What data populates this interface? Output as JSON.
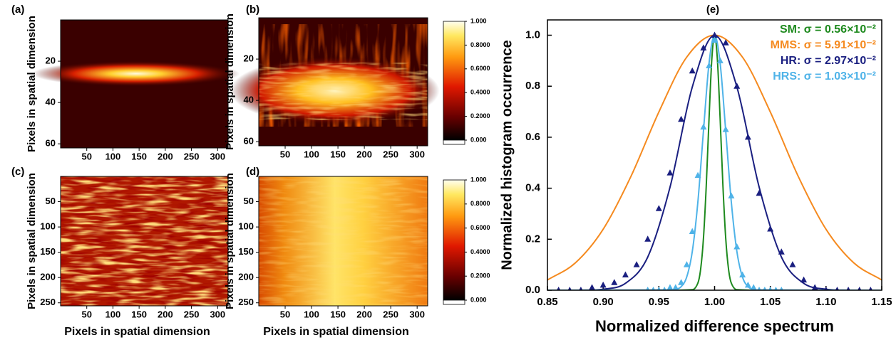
{
  "chart_data": [
    {
      "type": "heatmap",
      "label": "(a)",
      "ylabel": "Pixels in spatial dimension",
      "xlim": [
        0,
        320
      ],
      "xticks": [
        50,
        100,
        150,
        200,
        250,
        300
      ],
      "ylim": [
        0,
        62
      ],
      "yticks": [
        20,
        40,
        60
      ],
      "y_reversed": true
    },
    {
      "type": "heatmap",
      "label": "(b)",
      "ylabel": "Pixels in spatial dimension",
      "xlim": [
        0,
        320
      ],
      "xticks": [
        50,
        100,
        150,
        200,
        250,
        300
      ],
      "ylim": [
        0,
        62
      ],
      "yticks": [
        20,
        40,
        60
      ],
      "y_reversed": true,
      "colorbar": {
        "clim": [
          0,
          1
        ],
        "ticks": [
          {
            "value": 0,
            "label": "0.000"
          },
          {
            "value": 0.2,
            "label": "0.2000"
          },
          {
            "value": 0.4,
            "label": "0.4000"
          },
          {
            "value": 0.6,
            "label": "0.6000"
          },
          {
            "value": 0.8,
            "label": "0.8000"
          },
          {
            "value": 1,
            "label": "1.000"
          }
        ]
      }
    },
    {
      "type": "heatmap",
      "label": "(c)",
      "ylabel": "Pixels in spatial dimension",
      "xlabel": "Pixels in spatial dimension",
      "xlim": [
        0,
        320
      ],
      "xticks": [
        50,
        100,
        150,
        200,
        250,
        300
      ],
      "ylim": [
        0,
        256
      ],
      "yticks": [
        50,
        100,
        150,
        200,
        250
      ],
      "y_reversed": true
    },
    {
      "type": "heatmap",
      "label": "(d)",
      "ylabel": "Pixels in spatial dimension",
      "xlabel": "Pixels in spatial dimension",
      "xlim": [
        0,
        320
      ],
      "xticks": [
        50,
        100,
        150,
        200,
        250,
        300
      ],
      "ylim": [
        0,
        256
      ],
      "yticks": [
        50,
        100,
        150,
        200,
        250
      ],
      "y_reversed": true,
      "colorbar": {
        "clim": [
          0,
          1
        ],
        "ticks": [
          {
            "value": 0,
            "label": "0.000"
          },
          {
            "value": 0.2,
            "label": "0.2000"
          },
          {
            "value": 0.4,
            "label": "0.4000"
          },
          {
            "value": 0.6,
            "label": "0.6000"
          },
          {
            "value": 0.8,
            "label": "0.8000"
          },
          {
            "value": 1,
            "label": "1.000"
          }
        ]
      }
    },
    {
      "type": "line",
      "label": "(e)",
      "xlabel": "Normalized difference spectrum",
      "ylabel": "Normalized histogram occurrence",
      "xlim": [
        0.85,
        1.15
      ],
      "xticks": [
        0.85,
        {
          "value": 0.9,
          "label": "0.90"
        },
        0.95,
        {
          "value": 1,
          "label": "1.00"
        },
        1.05,
        {
          "value": 1.1,
          "label": "1.10"
        },
        1.15
      ],
      "ylim": [
        0,
        1.06
      ],
      "yticks": [
        {
          "value": 0,
          "label": "0.0"
        },
        0.2,
        0.4,
        0.6,
        0.8,
        {
          "value": 1,
          "label": "1.0"
        }
      ],
      "legend": "upper right",
      "series": [
        {
          "name": "SM: σ = 0.56×10⁻²",
          "color": "#1e8a1e",
          "x": [
            0.85,
            0.98,
            0.985,
            0.9875,
            0.99,
            0.9925,
            0.995,
            0.9975,
            1,
            1.0025,
            1.005,
            1.0075,
            1.01,
            1.0125,
            1.015,
            1.02,
            1.15
          ],
          "values": [
            0,
            0.002,
            0.028,
            0.083,
            0.203,
            0.408,
            0.671,
            0.905,
            1,
            0.905,
            0.671,
            0.408,
            0.203,
            0.083,
            0.028,
            0.002,
            0
          ]
        },
        {
          "name": "MMS: σ = 5.91×10⁻²",
          "color": "#f58a1f",
          "x": [
            0.85,
            0.875,
            0.9,
            0.925,
            0.95,
            0.975,
            1,
            1.025,
            1.05,
            1.075,
            1.1,
            1.125,
            1.15
          ],
          "values": [
            0.04,
            0.107,
            0.239,
            0.447,
            0.699,
            0.914,
            1,
            0.914,
            0.699,
            0.447,
            0.239,
            0.107,
            0.04
          ]
        },
        {
          "name": "HR: σ = 2.97×10⁻²",
          "color": "#1a1f80",
          "x": [
            0.85,
            0.88,
            0.9,
            0.92,
            0.94,
            0.96,
            0.98,
            1,
            1.02,
            1.04,
            1.06,
            1.08,
            1.1,
            1.12,
            1.15
          ],
          "values": [
            0,
            0,
            0.004,
            0.027,
            0.13,
            0.404,
            0.797,
            1,
            0.797,
            0.404,
            0.13,
            0.027,
            0.004,
            0,
            0
          ]
        },
        {
          "name": "HRS: σ = 1.03×10⁻²",
          "color": "#4fb3e8",
          "x": [
            0.85,
            0.96,
            0.965,
            0.97,
            0.975,
            0.98,
            0.985,
            0.99,
            0.995,
            1,
            1.005,
            1.01,
            1.015,
            1.02,
            1.025,
            1.03,
            1.035,
            1.04,
            1.15
          ],
          "values": [
            0,
            0.001,
            0.003,
            0.014,
            0.052,
            0.152,
            0.346,
            0.624,
            0.889,
            1,
            0.889,
            0.624,
            0.346,
            0.152,
            0.052,
            0.014,
            0.003,
            0.001,
            0
          ]
        },
        {
          "color": "#1a1f80",
          "marker": "triangle",
          "x": [
            0.86,
            0.87,
            0.88,
            0.89,
            0.9,
            0.91,
            0.92,
            0.93,
            0.94,
            0.95,
            0.96,
            0.97,
            0.98,
            0.99,
            1,
            1.01,
            1.02,
            1.03,
            1.04,
            1.05,
            1.06,
            1.07,
            1.08,
            1.09,
            1.1,
            1.11,
            1.12,
            1.13,
            1.14
          ],
          "values": [
            0,
            0,
            0,
            0.01,
            0.02,
            0.03,
            0.06,
            0.1,
            0.2,
            0.32,
            0.46,
            0.67,
            0.86,
            0.95,
            1,
            0.97,
            0.8,
            0.6,
            0.38,
            0.24,
            0.15,
            0.1,
            0.04,
            0.01,
            0,
            0,
            0,
            0,
            0
          ]
        },
        {
          "color": "#4fb3e8",
          "marker": "triangle",
          "x": [
            0.94,
            0.945,
            0.95,
            0.955,
            0.96,
            0.965,
            0.97,
            0.975,
            0.98,
            0.985,
            0.99,
            0.995,
            1,
            1.005,
            1.01,
            1.015,
            1.02,
            1.025,
            1.03,
            1.035,
            1.04,
            1.045,
            1.05,
            1.055,
            1.06
          ],
          "values": [
            0,
            0,
            0,
            0,
            0.01,
            0.01,
            0.03,
            0.1,
            0.23,
            0.45,
            0.64,
            0.88,
            0.98,
            0.9,
            0.63,
            0.37,
            0.17,
            0.06,
            0.02,
            0.01,
            0,
            0,
            0,
            0,
            0
          ]
        }
      ]
    }
  ]
}
